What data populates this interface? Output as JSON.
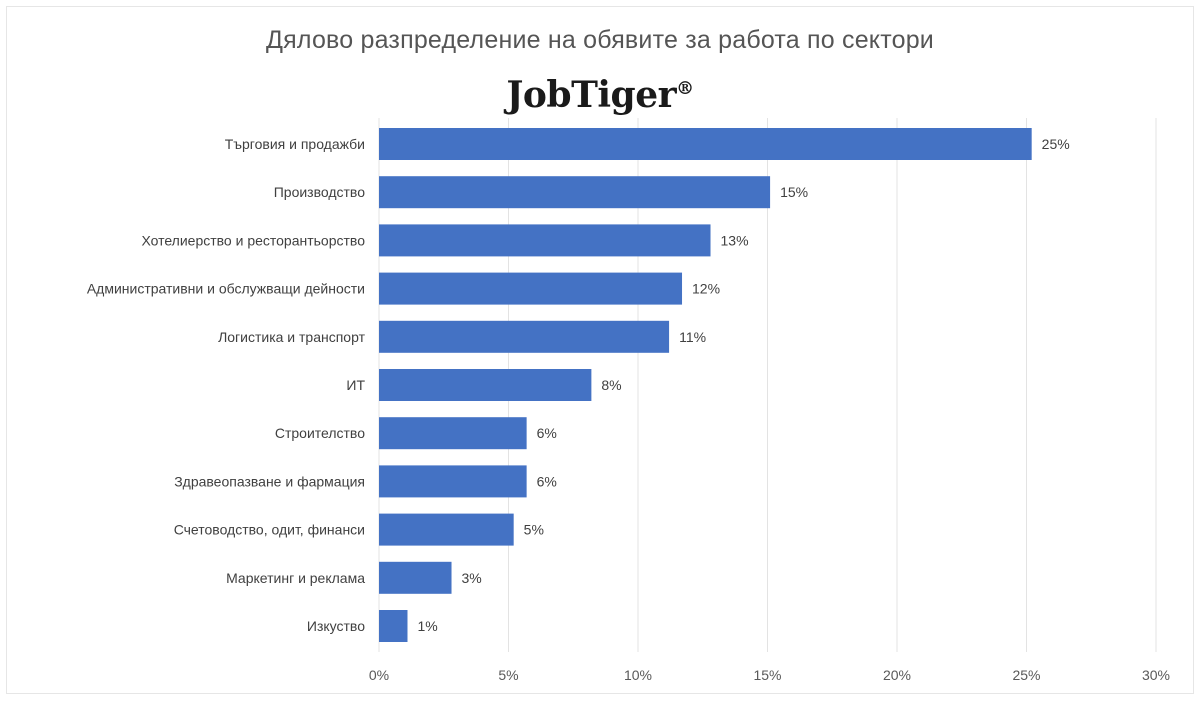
{
  "chart_data": {
    "type": "bar",
    "orientation": "horizontal",
    "title": "Дялово разпределение на обявите за работа по сектори",
    "brand": "JobTiger",
    "brand_mark": "®",
    "categories": [
      "Търговия и продажби",
      "Производство",
      "Хотелиерство и ресторантьорство",
      "Административни и обслужващи дейности",
      "Логистика и транспорт",
      "ИТ",
      "Строителство",
      "Здравеопазване и фармация",
      "Счетоводство, одит, финанси",
      "Маркетинг и реклама",
      "Изкуство"
    ],
    "values": [
      25,
      15,
      13,
      12,
      11,
      8,
      6,
      6,
      5,
      3,
      1
    ],
    "value_labels": [
      "25%",
      "15%",
      "13%",
      "12%",
      "11%",
      "8%",
      "6%",
      "6%",
      "5%",
      "3%",
      "1%"
    ],
    "bar_values_exact": [
      25.2,
      15.1,
      12.8,
      11.7,
      11.2,
      8.2,
      5.7,
      5.7,
      5.2,
      2.8,
      1.1
    ],
    "xlim": [
      0,
      30
    ],
    "xticks": [
      "0%",
      "5%",
      "10%",
      "15%",
      "20%",
      "25%",
      "30%"
    ],
    "xlabel": "",
    "ylabel": "",
    "grid": "vertical",
    "legend": "none",
    "bar_color": "#4472c4",
    "grid_color": "#e3e3e3"
  }
}
